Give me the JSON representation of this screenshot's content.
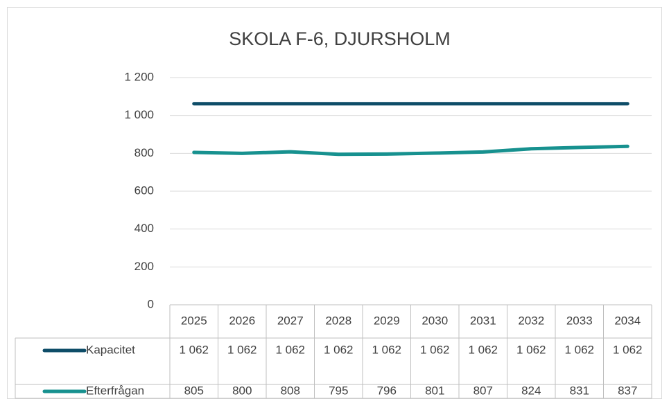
{
  "chart_data": {
    "type": "line",
    "title": "SKOLA F-6, DJURSHOLM",
    "categories": [
      "2025",
      "2026",
      "2027",
      "2028",
      "2029",
      "2030",
      "2031",
      "2032",
      "2033",
      "2034"
    ],
    "series": [
      {
        "name": "Kapacitet",
        "color": "#0e4d68",
        "values": [
          1062,
          1062,
          1062,
          1062,
          1062,
          1062,
          1062,
          1062,
          1062,
          1062
        ],
        "value_labels": [
          "1 062",
          "1 062",
          "1 062",
          "1 062",
          "1 062",
          "1 062",
          "1 062",
          "1 062",
          "1 062",
          "1 062"
        ]
      },
      {
        "name": "Efterfrågan",
        "color": "#17918f",
        "values": [
          805,
          800,
          808,
          795,
          796,
          801,
          807,
          824,
          831,
          837
        ]
      }
    ],
    "ylim": [
      0,
      1200
    ],
    "yticks": [
      0,
      200,
      400,
      600,
      800,
      1000,
      {
        "value": 1000,
        "label": "1 000"
      },
      {
        "value": 1200,
        "label": "1 200"
      }
    ],
    "grid": true
  }
}
